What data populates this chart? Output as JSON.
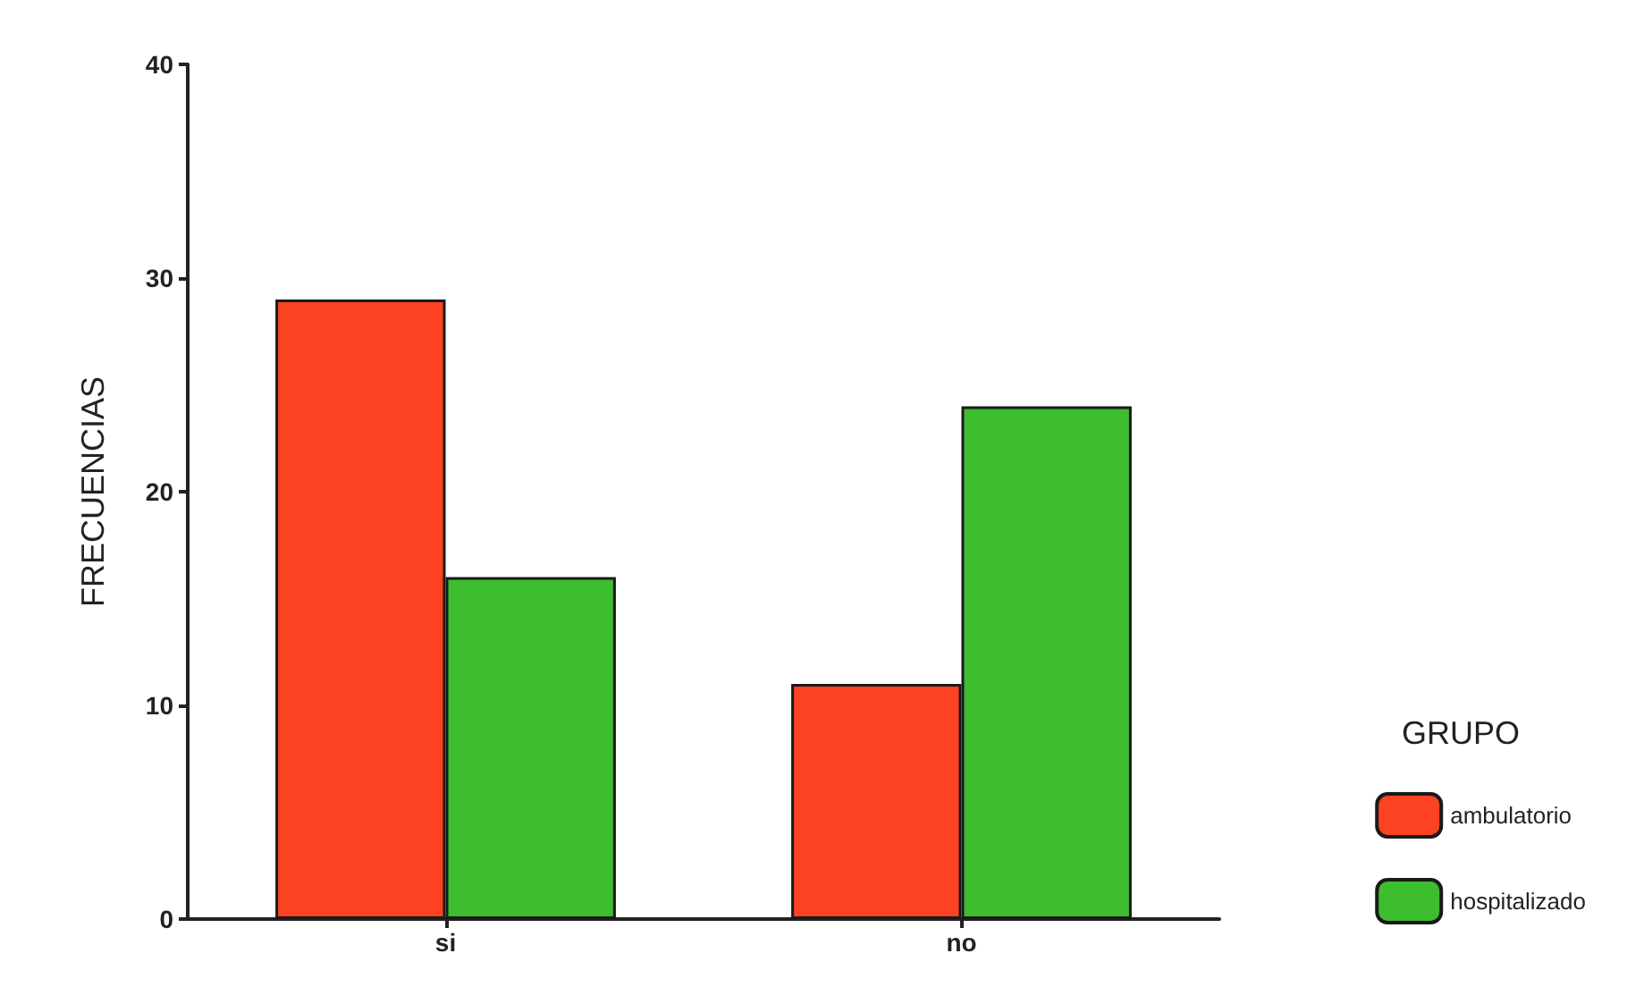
{
  "chart_data": {
    "type": "bar",
    "ylabel": "FRECUENCIAS",
    "legend_title": "GRUPO",
    "categories": [
      "si",
      "no"
    ],
    "series": [
      {
        "name": "ambulatorio",
        "color": "#fc4222",
        "values": [
          29,
          11
        ]
      },
      {
        "name": "hospitalizado",
        "color": "#3cbe2e",
        "values": [
          16,
          24
        ]
      }
    ],
    "ylim": [
      0,
      40
    ],
    "yticks": [
      0,
      10,
      20,
      30,
      40
    ],
    "grid": false,
    "legend": "right"
  }
}
